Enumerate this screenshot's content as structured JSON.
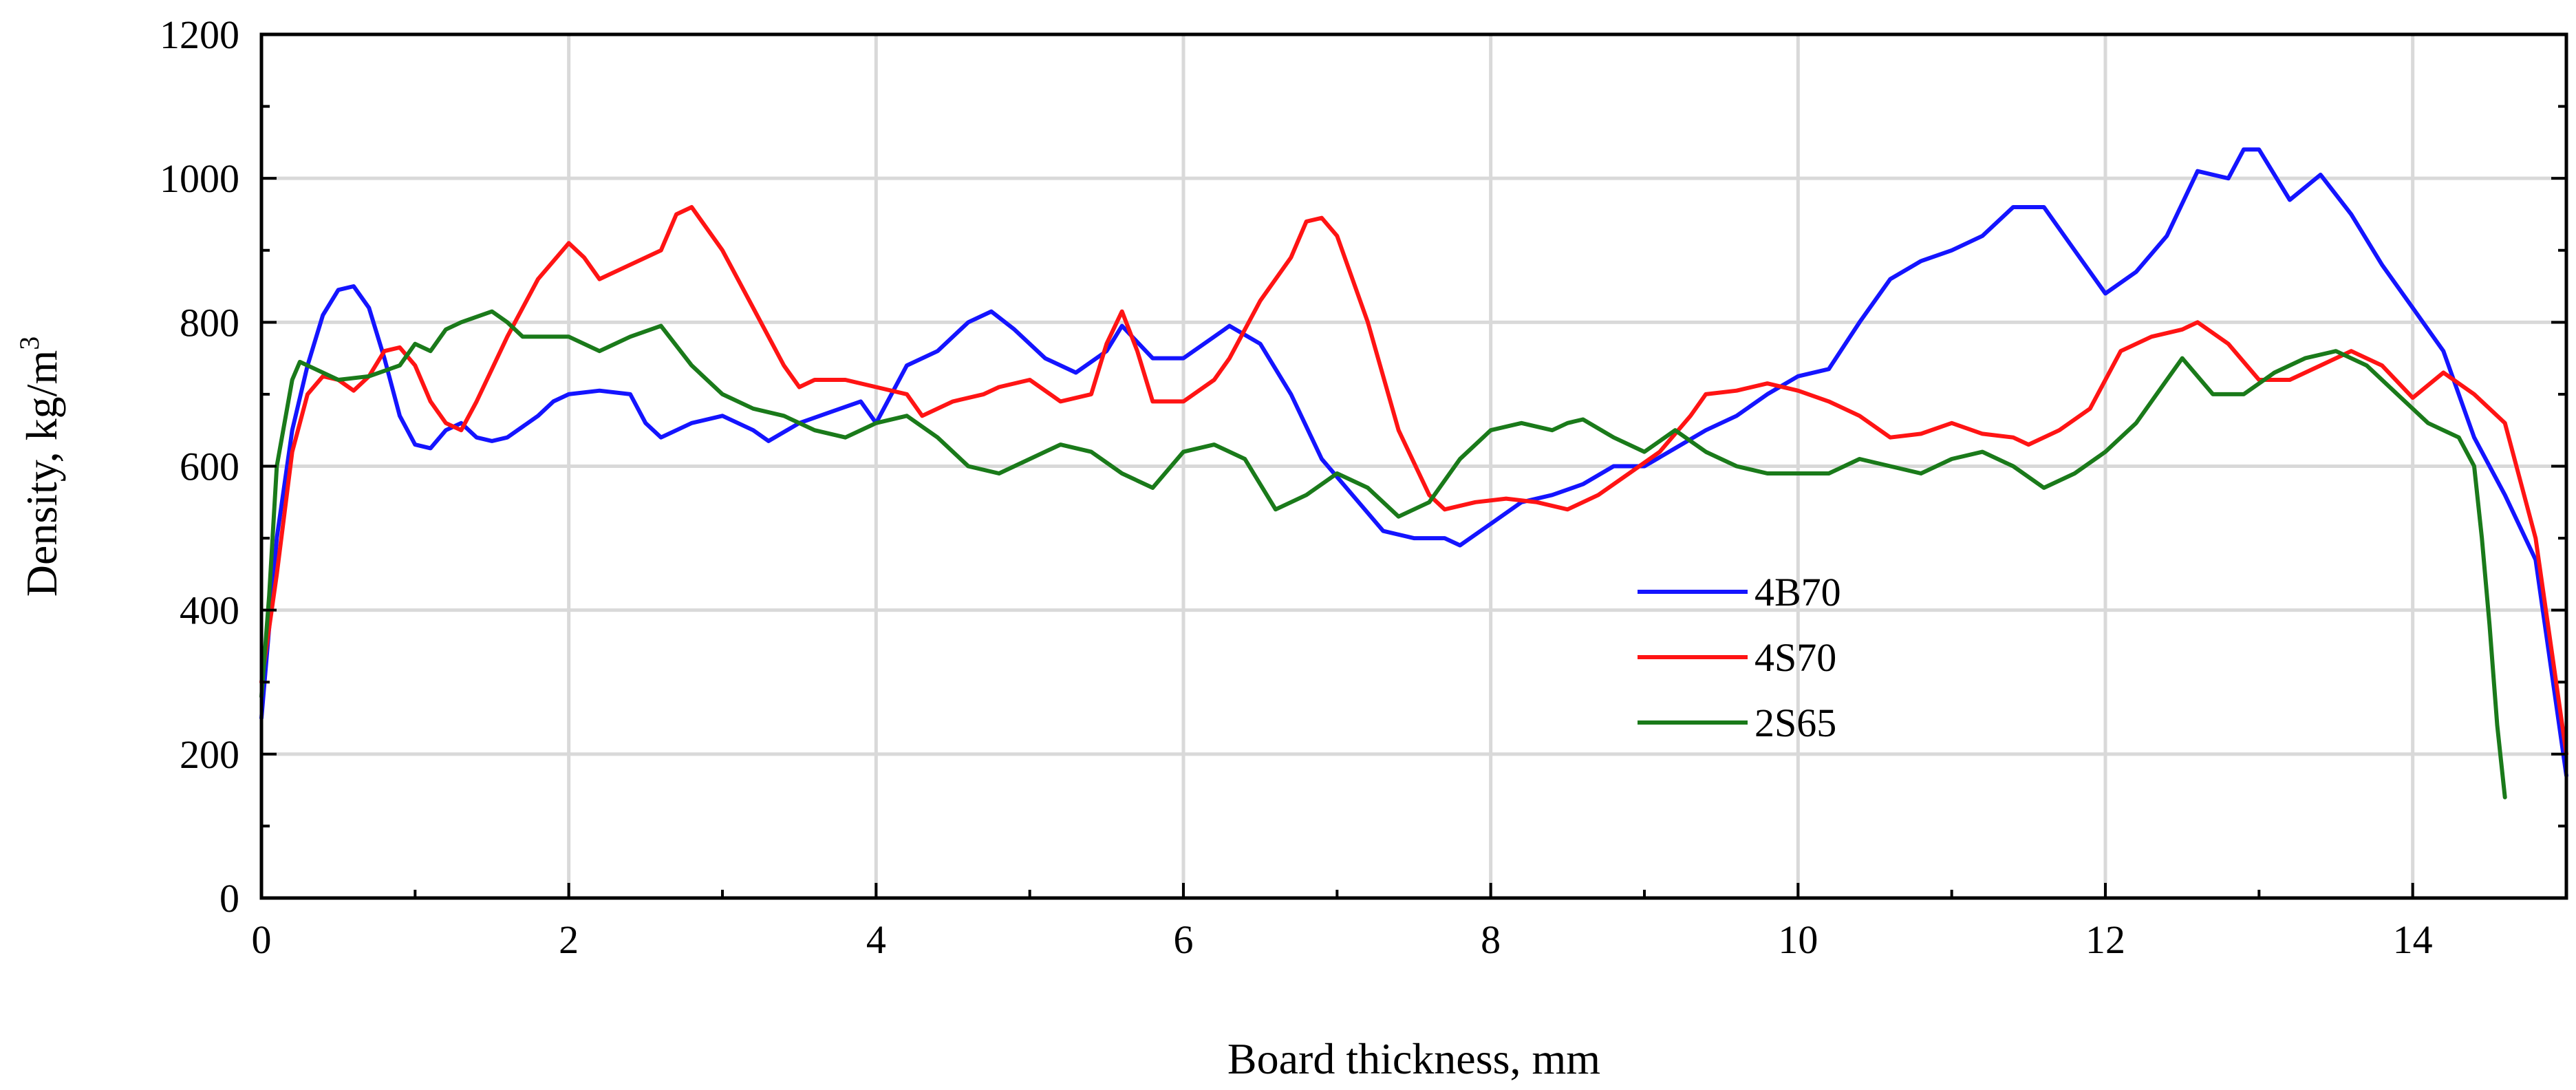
{
  "chart_data": {
    "type": "line",
    "title": "",
    "xlabel": "Board thickness, mm",
    "ylabel_main": "Density,  kg/m",
    "ylabel_sup": "3",
    "xlim": [
      0,
      15
    ],
    "ylim": [
      0,
      1200
    ],
    "xticks": [
      0,
      2,
      4,
      6,
      8,
      10,
      12,
      14
    ],
    "yticks": [
      0,
      200,
      400,
      600,
      800,
      1000,
      1200
    ],
    "grid": true,
    "legend_position": "center-right",
    "series": [
      {
        "name": "4B70",
        "color": "#1414ff",
        "x": [
          0,
          0.1,
          0.2,
          0.3,
          0.4,
          0.5,
          0.6,
          0.7,
          0.8,
          0.9,
          1.0,
          1.1,
          1.2,
          1.3,
          1.4,
          1.5,
          1.6,
          1.7,
          1.8,
          1.9,
          2.0,
          2.2,
          2.4,
          2.5,
          2.6,
          2.8,
          3.0,
          3.2,
          3.3,
          3.5,
          3.7,
          3.9,
          4.0,
          4.2,
          4.4,
          4.6,
          4.75,
          4.9,
          5.1,
          5.3,
          5.5,
          5.6,
          5.8,
          6.0,
          6.2,
          6.3,
          6.5,
          6.7,
          6.9,
          7.1,
          7.3,
          7.5,
          7.7,
          7.8,
          8.0,
          8.2,
          8.4,
          8.6,
          8.8,
          9.0,
          9.2,
          9.4,
          9.6,
          9.8,
          10.0,
          10.2,
          10.4,
          10.6,
          10.8,
          11.0,
          11.2,
          11.4,
          11.6,
          11.8,
          12.0,
          12.2,
          12.4,
          12.6,
          12.8,
          12.9,
          13.0,
          13.2,
          13.4,
          13.6,
          13.8,
          14.0,
          14.2,
          14.4,
          14.6,
          14.8,
          15.0
        ],
        "y": [
          250,
          500,
          650,
          740,
          810,
          845,
          850,
          820,
          750,
          670,
          630,
          625,
          650,
          660,
          640,
          635,
          640,
          655,
          670,
          690,
          700,
          705,
          700,
          660,
          640,
          660,
          670,
          650,
          635,
          660,
          675,
          690,
          660,
          740,
          760,
          800,
          815,
          790,
          750,
          730,
          760,
          795,
          750,
          750,
          780,
          795,
          770,
          700,
          610,
          560,
          510,
          500,
          500,
          490,
          520,
          550,
          560,
          575,
          600,
          600,
          625,
          650,
          670,
          700,
          725,
          735,
          800,
          860,
          885,
          900,
          920,
          960,
          960,
          900,
          840,
          870,
          920,
          1010,
          1000,
          1040,
          1040,
          970,
          1005,
          950,
          880,
          820,
          760,
          640,
          560,
          470,
          170
        ]
      },
      {
        "name": "4S70",
        "color": "#ff1414",
        "x": [
          0,
          0.1,
          0.2,
          0.3,
          0.4,
          0.5,
          0.6,
          0.7,
          0.8,
          0.9,
          1.0,
          1.1,
          1.2,
          1.3,
          1.4,
          1.6,
          1.8,
          2.0,
          2.1,
          2.2,
          2.4,
          2.6,
          2.7,
          2.8,
          3.0,
          3.2,
          3.4,
          3.5,
          3.6,
          3.8,
          4.0,
          4.2,
          4.3,
          4.5,
          4.7,
          4.8,
          5.0,
          5.2,
          5.4,
          5.5,
          5.6,
          5.7,
          5.8,
          6.0,
          6.2,
          6.3,
          6.5,
          6.7,
          6.8,
          6.9,
          7.0,
          7.2,
          7.4,
          7.6,
          7.7,
          7.9,
          8.1,
          8.3,
          8.5,
          8.7,
          8.9,
          9.1,
          9.3,
          9.4,
          9.6,
          9.8,
          10.0,
          10.2,
          10.4,
          10.6,
          10.8,
          11.0,
          11.2,
          11.4,
          11.5,
          11.7,
          11.9,
          12.1,
          12.3,
          12.5,
          12.6,
          12.8,
          13.0,
          13.2,
          13.4,
          13.6,
          13.8,
          14.0,
          14.2,
          14.4,
          14.6,
          14.8,
          15.0
        ],
        "y": [
          300,
          450,
          620,
          700,
          725,
          720,
          705,
          725,
          760,
          765,
          740,
          690,
          660,
          650,
          690,
          780,
          860,
          910,
          890,
          860,
          880,
          900,
          950,
          960,
          900,
          820,
          740,
          710,
          720,
          720,
          710,
          700,
          670,
          690,
          700,
          710,
          720,
          690,
          700,
          770,
          815,
          760,
          690,
          690,
          720,
          750,
          830,
          890,
          940,
          945,
          920,
          800,
          650,
          560,
          540,
          550,
          555,
          550,
          540,
          560,
          590,
          620,
          670,
          700,
          705,
          715,
          705,
          690,
          670,
          640,
          645,
          660,
          645,
          640,
          630,
          650,
          680,
          760,
          780,
          790,
          800,
          770,
          720,
          720,
          740,
          760,
          740,
          695,
          730,
          700,
          660,
          500,
          200
        ]
      },
      {
        "name": "2S65",
        "color": "#1a7a1a",
        "x": [
          0,
          0.05,
          0.1,
          0.2,
          0.25,
          0.35,
          0.5,
          0.7,
          0.9,
          1.0,
          1.1,
          1.2,
          1.3,
          1.5,
          1.6,
          1.7,
          1.8,
          2.0,
          2.2,
          2.4,
          2.6,
          2.8,
          3.0,
          3.2,
          3.4,
          3.6,
          3.8,
          4.0,
          4.2,
          4.4,
          4.6,
          4.8,
          5.0,
          5.2,
          5.4,
          5.6,
          5.8,
          6.0,
          6.2,
          6.4,
          6.6,
          6.8,
          7.0,
          7.2,
          7.4,
          7.6,
          7.8,
          8.0,
          8.2,
          8.4,
          8.5,
          8.6,
          8.8,
          9.0,
          9.2,
          9.4,
          9.6,
          9.8,
          10.0,
          10.2,
          10.4,
          10.6,
          10.8,
          11.0,
          11.2,
          11.4,
          11.6,
          11.8,
          12.0,
          12.2,
          12.4,
          12.5,
          12.7,
          12.9,
          13.1,
          13.3,
          13.5,
          13.7,
          13.9,
          14.1,
          14.3,
          14.4,
          14.45,
          14.5,
          14.55,
          14.6
        ],
        "y": [
          280,
          420,
          600,
          720,
          745,
          735,
          720,
          725,
          740,
          770,
          760,
          790,
          800,
          815,
          800,
          780,
          780,
          780,
          760,
          780,
          795,
          740,
          700,
          680,
          670,
          650,
          640,
          660,
          670,
          640,
          600,
          590,
          610,
          630,
          620,
          590,
          570,
          620,
          630,
          610,
          540,
          560,
          590,
          570,
          530,
          550,
          610,
          650,
          660,
          650,
          660,
          665,
          640,
          620,
          650,
          620,
          600,
          590,
          590,
          590,
          610,
          600,
          590,
          610,
          620,
          600,
          570,
          590,
          620,
          660,
          720,
          750,
          700,
          700,
          730,
          750,
          760,
          740,
          700,
          660,
          640,
          600,
          500,
          380,
          240,
          140
        ]
      }
    ]
  }
}
